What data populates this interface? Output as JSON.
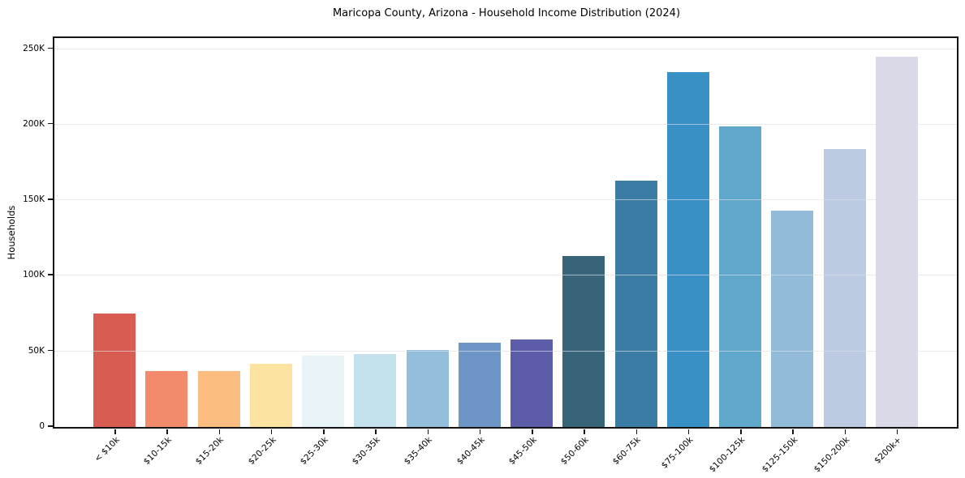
{
  "chart_data": {
    "type": "bar",
    "title": "Maricopa County, Arizona - Household Income Distribution (2024)",
    "xlabel": "",
    "ylabel": "Households",
    "categories": [
      "< $10k",
      "$10-15k",
      "$15-20k",
      "$20-25k",
      "$25-30k",
      "$30-35k",
      "$35-40k",
      "$40-45k",
      "$45-50k",
      "$50-60k",
      "$60-75k",
      "$75-100k",
      "$100-125k",
      "$125-150k",
      "$150-200k",
      "$200k+"
    ],
    "values": [
      75000,
      37000,
      37000,
      42000,
      47000,
      48000,
      51000,
      56000,
      58000,
      113000,
      163000,
      235000,
      199000,
      143000,
      184000,
      245000
    ],
    "bar_colors": [
      "#d85c52",
      "#f28b6b",
      "#fabd7f",
      "#fce3a2",
      "#e8f3f8",
      "#c3e2ee",
      "#93bfdd",
      "#6d95c6",
      "#5c5ca8",
      "#38647a",
      "#3a7ca4",
      "#3890c5",
      "#5fa7cb",
      "#92bad9",
      "#bccae2",
      "#d9d9e8"
    ],
    "y_ticks": [
      {
        "value": 0,
        "label": "0"
      },
      {
        "value": 50000,
        "label": "50K"
      },
      {
        "value": 100000,
        "label": "100K"
      },
      {
        "value": 150000,
        "label": "150K"
      },
      {
        "value": 200000,
        "label": "200K"
      },
      {
        "value": 250000,
        "label": "250K"
      }
    ],
    "ylim": [
      0,
      257250
    ],
    "grid": "horizontal",
    "legend": "none",
    "frame_color": "#141414",
    "grid_color": "#e8e8ee"
  }
}
